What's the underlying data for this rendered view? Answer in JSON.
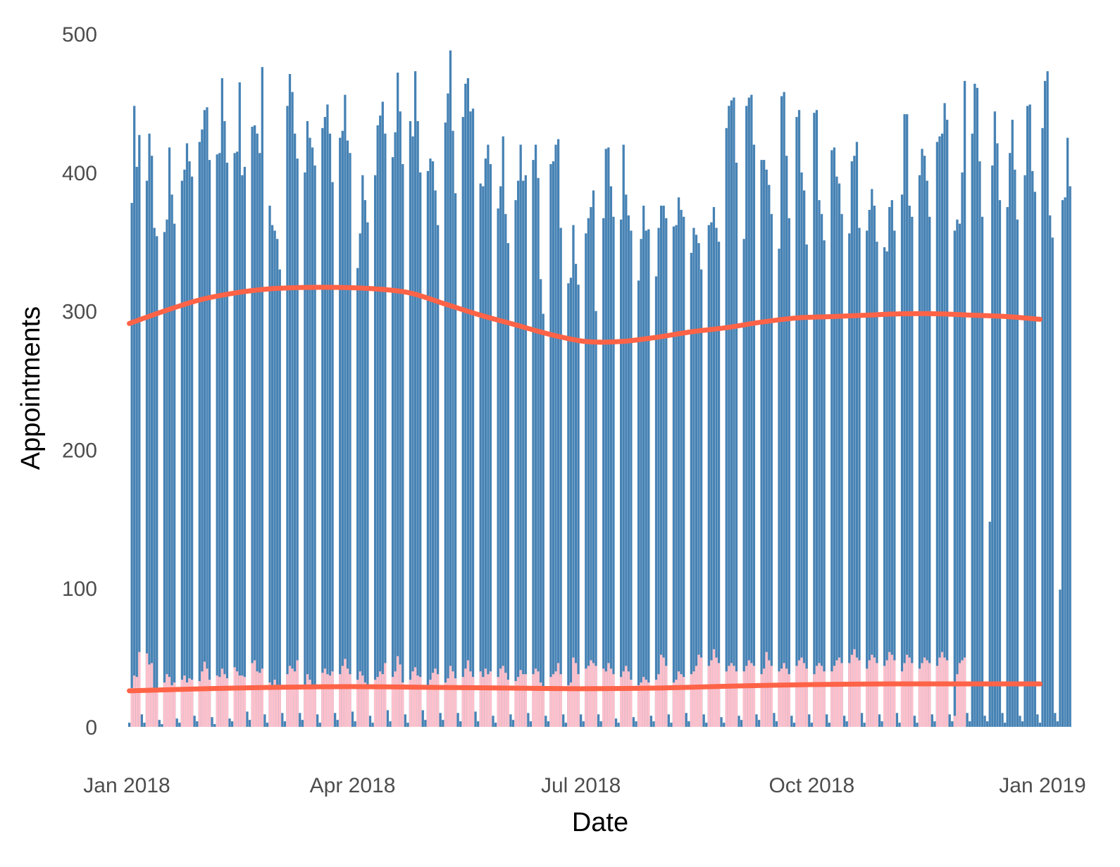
{
  "chart_data": {
    "type": "bar",
    "xlabel": "Date",
    "ylabel": "Appointments",
    "ylim": [
      0,
      500
    ],
    "xlim": [
      "2018-01-01",
      "2019-01-01"
    ],
    "y_ticks": [
      0,
      100,
      200,
      300,
      400,
      500
    ],
    "x_ticks": [
      {
        "date": "2018-01-01",
        "label": "Jan 2018"
      },
      {
        "date": "2018-04-01",
        "label": "Apr 2018"
      },
      {
        "date": "2018-07-01",
        "label": "Jul 2018"
      },
      {
        "date": "2018-10-01",
        "label": "Oct 2018"
      },
      {
        "date": "2019-01-01",
        "label": "Jan 2019"
      }
    ],
    "grid": false,
    "legend": "none",
    "colors": {
      "bars_total": "#4682B4",
      "bars_secondary": "#FFC0CB",
      "trend": "#FF6347"
    },
    "series": [
      {
        "start_date": "2018-01-02",
        "kind": "bar",
        "color": "#4682B4",
        "values": [
          3,
          378,
          448,
          404,
          427,
          9,
          3,
          394,
          428,
          412,
          360,
          354,
          5,
          2,
          357,
          366,
          418,
          384,
          363,
          6,
          3,
          394,
          402,
          421,
          408,
          397,
          8,
          4,
          422,
          431,
          445,
          447,
          409,
          7,
          2,
          413,
          414,
          468,
          437,
          407,
          6,
          4,
          414,
          415,
          465,
          398,
          404,
          11,
          5,
          433,
          434,
          428,
          414,
          476,
          9,
          3,
          376,
          362,
          358,
          352,
          330,
          10,
          4,
          448,
          471,
          458,
          428,
          410,
          10,
          5,
          400,
          437,
          425,
          418,
          405,
          9,
          3,
          432,
          440,
          449,
          428,
          393,
          10,
          5,
          425,
          430,
          456,
          423,
          414,
          11,
          4,
          331,
          356,
          398,
          380,
          364,
          8,
          3,
          398,
          434,
          441,
          451,
          428,
          12,
          4,
          411,
          429,
          472,
          444,
          406,
          9,
          3,
          437,
          426,
          473,
          437,
          400,
          12,
          5,
          401,
          410,
          408,
          387,
          362,
          10,
          5,
          436,
          457,
          488,
          430,
          385,
          10,
          4,
          440,
          464,
          468,
          444,
          446,
          11,
          4,
          392,
          390,
          410,
          420,
          406,
          8,
          3,
          374,
          390,
          426,
          370,
          349,
          9,
          5,
          380,
          394,
          420,
          394,
          398,
          10,
          4,
          409,
          420,
          396,
          323,
          298,
          8,
          4,
          406,
          408,
          420,
          424,
          360,
          9,
          3,
          320,
          324,
          362,
          334,
          319,
          9,
          4,
          356,
          367,
          375,
          387,
          300,
          9,
          4,
          367,
          417,
          418,
          390,
          368,
          6,
          3,
          366,
          420,
          384,
          369,
          358,
          7,
          4,
          322,
          352,
          376,
          358,
          359,
          8,
          4,
          325,
          360,
          376,
          376,
          367,
          9,
          3,
          361,
          362,
          382,
          373,
          368,
          10,
          4,
          342,
          360,
          355,
          349,
          330,
          9,
          3,
          362,
          364,
          375,
          360,
          350,
          7,
          3,
          432,
          448,
          452,
          454,
          407,
          8,
          5,
          352,
          448,
          454,
          456,
          420,
          9,
          5,
          409,
          409,
          402,
          391,
          370,
          10,
          4,
          345,
          455,
          458,
          412,
          367,
          8,
          3,
          440,
          445,
          400,
          387,
          348,
          9,
          3,
          443,
          445,
          380,
          370,
          351,
          9,
          3,
          416,
          418,
          397,
          392,
          370,
          8,
          4,
          356,
          408,
          412,
          422,
          360,
          10,
          3,
          358,
          373,
          388,
          376,
          350,
          9,
          4,
          346,
          343,
          375,
          380,
          358,
          10,
          3,
          384,
          442,
          442,
          376,
          368,
          8,
          3,
          398,
          417,
          412,
          394,
          368,
          9,
          4,
          422,
          426,
          428,
          450,
          438,
          9,
          4,
          358,
          366,
          363,
          400,
          466,
          10,
          4,
          428,
          464,
          461,
          408,
          368,
          8,
          4,
          148,
          405,
          444,
          421,
          380,
          10,
          3,
          375,
          414,
          438,
          402,
          366,
          8,
          4,
          398,
          448,
          449,
          401,
          386,
          9,
          3,
          432,
          466,
          473,
          369,
          353,
          10,
          4,
          99,
          380,
          382,
          425,
          390
        ]
      },
      {
        "start_date": "2018-01-02",
        "kind": "bar",
        "color": "#FFC0CB",
        "values": [
          0,
          28,
          37,
          36,
          54,
          0,
          0,
          53,
          45,
          46,
          28,
          26,
          0,
          0,
          32,
          38,
          36,
          30,
          32,
          0,
          0,
          34,
          37,
          32,
          35,
          34,
          0,
          0,
          33,
          40,
          47,
          42,
          34,
          0,
          0,
          37,
          36,
          42,
          38,
          35,
          0,
          0,
          43,
          40,
          37,
          37,
          36,
          0,
          0,
          46,
          48,
          40,
          39,
          42,
          0,
          0,
          32,
          29,
          34,
          28,
          27,
          0,
          0,
          38,
          44,
          42,
          40,
          48,
          0,
          0,
          30,
          38,
          34,
          28,
          30,
          0,
          0,
          39,
          42,
          38,
          37,
          40,
          0,
          0,
          38,
          44,
          49,
          42,
          38,
          0,
          0,
          34,
          40,
          37,
          32,
          30,
          0,
          0,
          34,
          36,
          40,
          38,
          46,
          0,
          0,
          36,
          40,
          51,
          45,
          32,
          0,
          0,
          34,
          40,
          43,
          37,
          36,
          0,
          0,
          30,
          34,
          39,
          42,
          38,
          0,
          0,
          32,
          35,
          44,
          40,
          35,
          0,
          0,
          36,
          42,
          48,
          40,
          36,
          0,
          0,
          40,
          36,
          42,
          38,
          40,
          0,
          0,
          36,
          42,
          44,
          39,
          34,
          0,
          0,
          33,
          36,
          41,
          38,
          38,
          0,
          0,
          38,
          42,
          40,
          32,
          28,
          0,
          0,
          36,
          38,
          40,
          46,
          38,
          0,
          0,
          30,
          32,
          50,
          46,
          38,
          0,
          0,
          42,
          44,
          48,
          46,
          44,
          0,
          0,
          42,
          40,
          46,
          42,
          38,
          0,
          0,
          36,
          40,
          44,
          40,
          34,
          0,
          0,
          30,
          32,
          36,
          34,
          32,
          0,
          0,
          34,
          38,
          52,
          50,
          44,
          0,
          0,
          32,
          34,
          40,
          38,
          36,
          0,
          0,
          38,
          40,
          44,
          52,
          50,
          0,
          0,
          44,
          48,
          56,
          50,
          46,
          0,
          0,
          40,
          44,
          46,
          44,
          40,
          0,
          0,
          40,
          44,
          48,
          46,
          44,
          0,
          0,
          38,
          42,
          54,
          48,
          44,
          0,
          0,
          40,
          42,
          46,
          42,
          38,
          0,
          0,
          44,
          48,
          50,
          46,
          42,
          0,
          0,
          38,
          44,
          46,
          44,
          40,
          0,
          0,
          40,
          44,
          48,
          50,
          46,
          0,
          0,
          46,
          52,
          56,
          50,
          48,
          0,
          0,
          42,
          48,
          52,
          50,
          46,
          0,
          0,
          44,
          48,
          54,
          52,
          48,
          0,
          0,
          40,
          46,
          52,
          50,
          46,
          0,
          0,
          42,
          46,
          50,
          48,
          46,
          0,
          0,
          44,
          50,
          54,
          50,
          48,
          0,
          0,
          8,
          38,
          46,
          48,
          50
        ]
      },
      {
        "name": "",
        "kind": "line",
        "color": "#FF6347",
        "x": [
          "2018-01-02",
          "2018-01-16",
          "2018-01-30",
          "2018-02-13",
          "2018-02-27",
          "2018-03-13",
          "2018-03-27",
          "2018-04-10",
          "2018-04-24",
          "2018-05-08",
          "2018-05-22",
          "2018-06-05",
          "2018-06-19",
          "2018-07-03",
          "2018-07-17",
          "2018-07-31",
          "2018-08-14",
          "2018-08-28",
          "2018-09-11",
          "2018-09-25",
          "2018-10-09",
          "2018-10-23",
          "2018-11-06",
          "2018-11-20",
          "2018-12-04",
          "2018-12-18",
          "2018-12-31"
        ],
        "values": [
          291,
          300,
          308,
          313,
          316,
          317,
          317,
          316,
          313,
          305,
          297,
          290,
          283,
          278,
          278,
          281,
          285,
          288,
          292,
          295,
          296,
          297,
          298,
          298,
          297,
          296,
          294
        ]
      },
      {
        "name": "",
        "kind": "line",
        "color": "#FF6347",
        "x": [
          "2018-01-02",
          "2018-02-01",
          "2018-03-01",
          "2018-04-01",
          "2018-05-01",
          "2018-06-01",
          "2018-07-01",
          "2018-08-01",
          "2018-09-01",
          "2018-10-01",
          "2018-11-01",
          "2018-12-01",
          "2018-12-31"
        ],
        "values": [
          26,
          27.5,
          28.5,
          29,
          28.5,
          28,
          27.5,
          28,
          29.5,
          30.5,
          31,
          31,
          31
        ]
      }
    ]
  }
}
